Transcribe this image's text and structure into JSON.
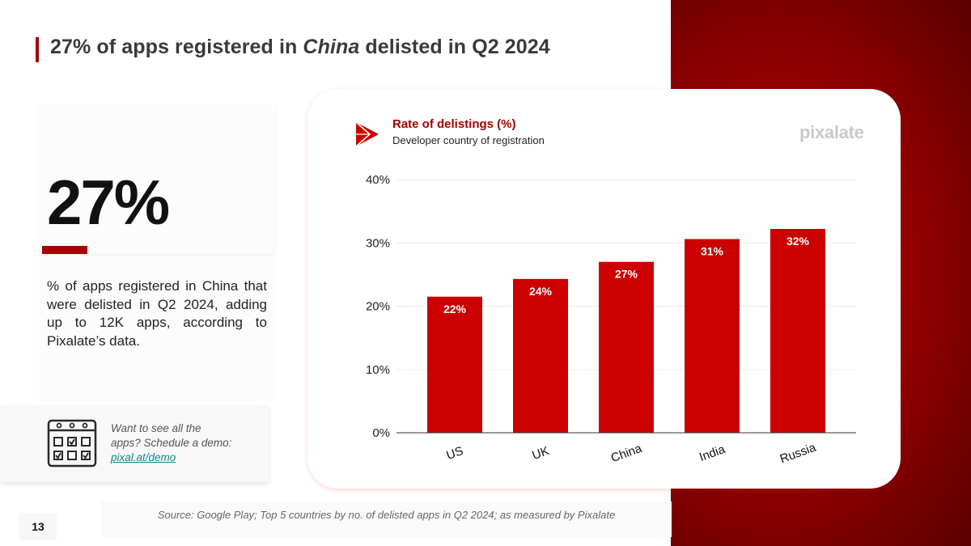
{
  "slide": {
    "title_pre": "27% of apps registered in ",
    "title_emph": "China",
    "title_post": " delisted in Q2 2024",
    "page_number": "13"
  },
  "stat": {
    "value": "27%",
    "description": "% of apps registered in China that were delisted in Q2 2024, adding up to 12K apps, according to Pixalate’s data."
  },
  "cta": {
    "text": "Want to see all the apps? Schedule a demo: ",
    "link_text": "pixal.at/demo"
  },
  "source": "Source: Google Play; Top 5 countries by no. of delisted apps in Q2 2024; as measured by Pixalate",
  "brand": "pixalate",
  "colors": {
    "accent": "#a30000",
    "bar": "#cc0000",
    "link": "#0a8a8a"
  },
  "chart_data": {
    "type": "bar",
    "title": "Rate of delistings (%)",
    "subtitle": "Developer country of registration",
    "categories": [
      "US",
      "UK",
      "China",
      "India",
      "Russia"
    ],
    "values": [
      21.5,
      24.3,
      27.0,
      30.6,
      32.2
    ],
    "data_labels": [
      "22%",
      "24%",
      "27%",
      "31%",
      "32%"
    ],
    "y_ticks": [
      0,
      10,
      20,
      30,
      40
    ],
    "y_tick_labels": [
      "0%",
      "10%",
      "20%",
      "30%",
      "40%"
    ],
    "ylim": [
      0,
      40
    ],
    "grid": true,
    "xlabel": "",
    "ylabel": ""
  }
}
